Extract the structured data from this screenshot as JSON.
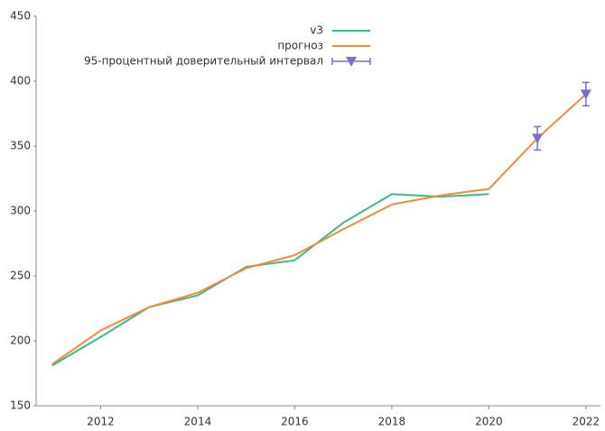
{
  "chart_data": {
    "type": "line",
    "series": [
      {
        "name": "v3",
        "color": "#3cb88a",
        "x": [
          2011,
          2012,
          2013,
          2014,
          2015,
          2016,
          2017,
          2018,
          2019,
          2020
        ],
        "values": [
          181,
          203,
          226,
          235,
          257,
          262,
          291,
          313,
          311,
          313
        ]
      },
      {
        "name": "прогноз",
        "color": "#f28a40",
        "x": [
          2011,
          2012,
          2013,
          2014,
          2015,
          2016,
          2017,
          2018,
          2019,
          2020,
          2021,
          2022
        ],
        "values": [
          182,
          208,
          226,
          237,
          256,
          266,
          286,
          305,
          312,
          317,
          356,
          390
        ]
      },
      {
        "name": "95-процентный доверительный интервал",
        "color": "#7b6fc6",
        "x": [
          2021,
          2022
        ],
        "values": [
          356,
          390
        ],
        "errors": [
          9,
          9
        ]
      }
    ],
    "xlim": [
      2010.67,
      2022.3
    ],
    "xticks": [
      2012,
      2014,
      2016,
      2018,
      2020,
      2022
    ],
    "ylim": [
      150,
      450
    ],
    "yticks": [
      150,
      200,
      250,
      300,
      350,
      400,
      450
    ],
    "legend": "top"
  }
}
